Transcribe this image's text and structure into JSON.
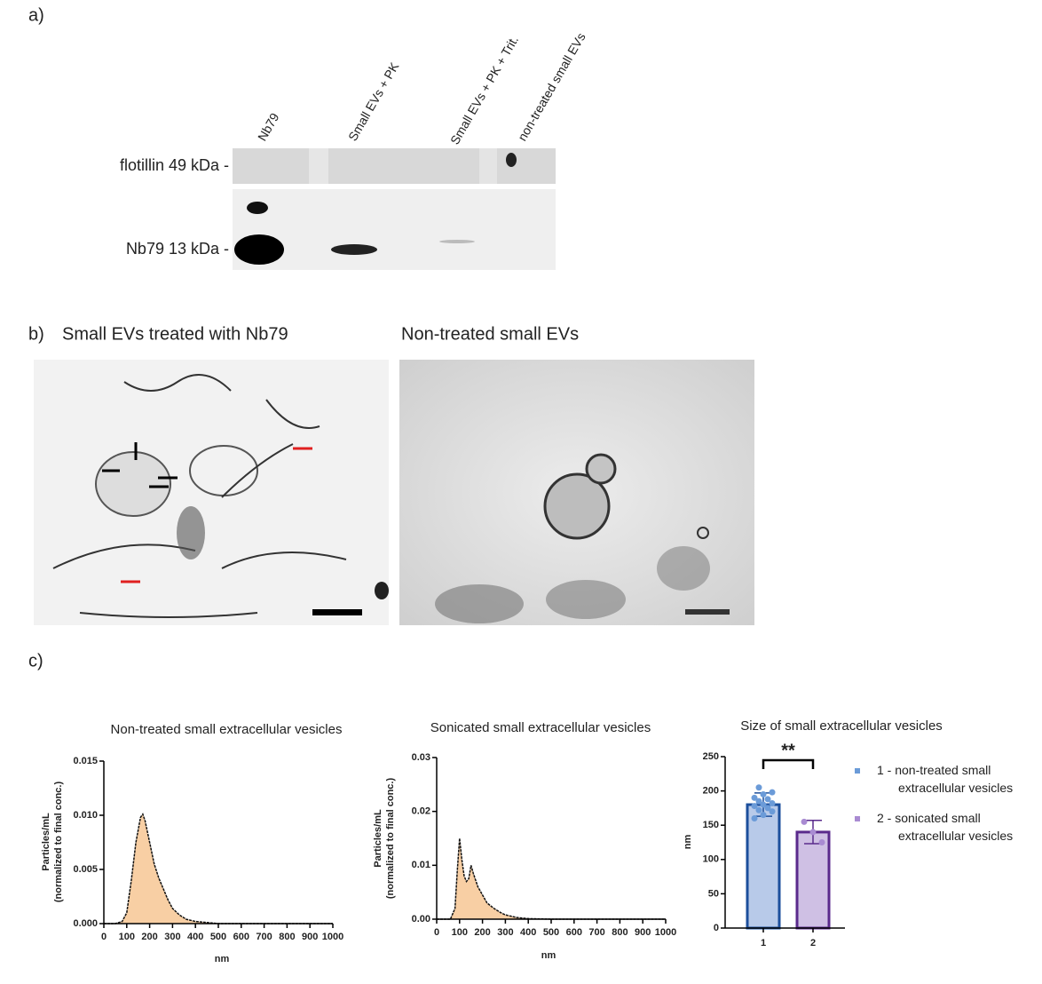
{
  "panel_labels": [
    "a)",
    "b)",
    "c)"
  ],
  "blot": {
    "lanes": [
      "Nb79",
      "Small EVs + PK",
      "Small EVs + PK + Trit.",
      "non-treated small EVs"
    ],
    "rows": [
      "flotillin  49 kDa -",
      "Nb79  13 kDa -"
    ]
  },
  "micrographs": [
    "Small EVs treated with Nb79",
    "Non-treated small EVs"
  ],
  "chart_data": [
    {
      "type": "area",
      "title": "Non-treated small extracellular vesicles",
      "xlabel": "nm",
      "ylabel": [
        "Particles/mL",
        "(normalized to final conc.)"
      ],
      "color": "#f8cfa4",
      "line_color": "#111111",
      "x": [
        0,
        50,
        80,
        100,
        120,
        140,
        160,
        170,
        180,
        200,
        220,
        240,
        260,
        280,
        300,
        330,
        360,
        400,
        450,
        500,
        600,
        1000
      ],
      "values": [
        0,
        0,
        0.0002,
        0.001,
        0.004,
        0.0075,
        0.0098,
        0.0101,
        0.0095,
        0.0075,
        0.0055,
        0.0042,
        0.0032,
        0.0022,
        0.0014,
        0.0008,
        0.0004,
        0.0002,
        0.0001,
        0,
        0,
        0
      ],
      "xlim": [
        0,
        1000
      ],
      "xticks": [
        0,
        100,
        200,
        300,
        400,
        500,
        600,
        700,
        800,
        900,
        1000
      ],
      "ylim": [
        0,
        0.015
      ],
      "yticks": [
        {
          "value": 0,
          "label": "0.000"
        },
        0.005,
        {
          "value": 0.01,
          "label": "0.010"
        },
        0.015
      ]
    },
    {
      "type": "area",
      "title": "Sonicated small extracellular vesicles",
      "xlabel": "nm",
      "ylabel": [
        "Particles/mL",
        "(normalized to final conc.)"
      ],
      "color": "#f8cfa4",
      "line_color": "#111111",
      "x": [
        0,
        60,
        80,
        90,
        100,
        110,
        120,
        130,
        140,
        150,
        160,
        180,
        200,
        220,
        250,
        280,
        300,
        350,
        400,
        500,
        1000
      ],
      "values": [
        0,
        0,
        0.002,
        0.009,
        0.015,
        0.011,
        0.008,
        0.007,
        0.0075,
        0.01,
        0.0085,
        0.006,
        0.0045,
        0.003,
        0.002,
        0.0012,
        0.0008,
        0.0003,
        0.0001,
        0,
        0
      ],
      "xlim": [
        0,
        1000
      ],
      "xticks": [
        0,
        100,
        200,
        300,
        400,
        500,
        600,
        700,
        800,
        900,
        1000
      ],
      "ylim": [
        0,
        0.03
      ],
      "yticks": [
        {
          "value": 0,
          "label": "0.00"
        },
        0.01,
        0.02,
        0.03
      ]
    },
    {
      "type": "bar",
      "title": "Size of small extracellular vesicles",
      "ylabel": "nm",
      "annotation": "**",
      "categories": [
        "1",
        "2"
      ],
      "values": [
        180,
        140
      ],
      "errors": [
        17,
        17
      ],
      "points": [
        [
          160,
          165,
          170,
          172,
          175,
          178,
          180,
          182,
          185,
          188,
          190,
          195,
          198,
          205
        ],
        [
          155,
          140,
          125
        ]
      ],
      "colors": [
        "#b8cae9",
        "#cfc0e4"
      ],
      "edge_colors": [
        "#1c4f9c",
        "#5a2a8c"
      ],
      "point_colors": [
        "#6b9bd8",
        "#a98bd2"
      ],
      "legend": [
        "1 - non-treated small extracellular vesicles",
        "2 - sonicated small extracellular vesicles"
      ],
      "ylim": [
        0,
        250
      ],
      "yticks": [
        0,
        50,
        100,
        150,
        200,
        250
      ]
    }
  ]
}
